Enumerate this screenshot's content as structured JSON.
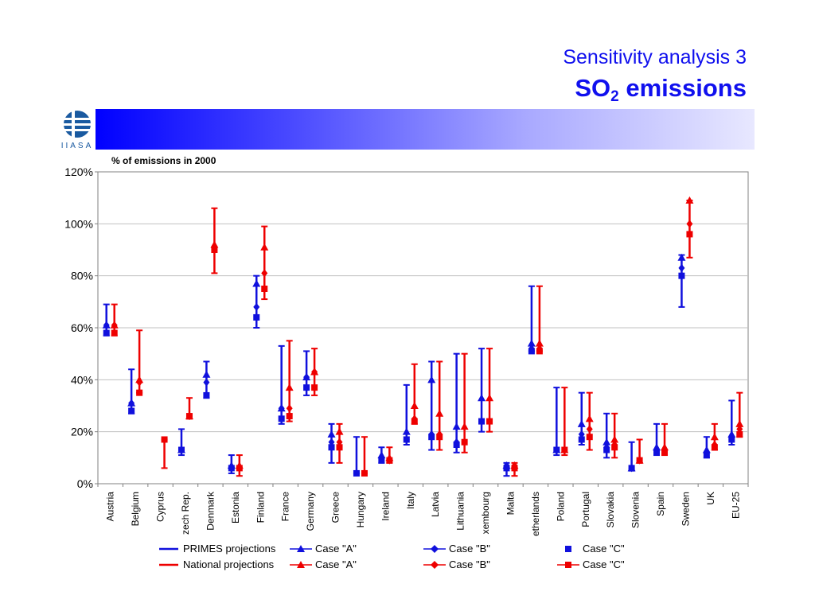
{
  "header": {
    "title": "Sensitivity analysis 3",
    "subtitle_prefix": "SO",
    "subtitle_sub": "2",
    "subtitle_suffix": " emissions",
    "logo_text": "IIASA"
  },
  "colors": {
    "primes": "#1010dd",
    "national": "#ee0000",
    "title": "#1010ee"
  },
  "chart_data": {
    "type": "scatter",
    "unit_label": "% of emissions in 2000",
    "ylim": [
      0,
      120
    ],
    "yticks": [
      "0%",
      "20%",
      "40%",
      "60%",
      "80%",
      "100%",
      "120%"
    ],
    "grid": true,
    "categories": [
      "Austria",
      "Belgium",
      "Cyprus",
      "Czech Rep.",
      "Denmark",
      "Estonia",
      "Finland",
      "France",
      "Germany",
      "Greece",
      "Hungary",
      "Ireland",
      "Italy",
      "Latvia",
      "Lithuania",
      "Luxembourg",
      "Malta",
      "Netherlands",
      "Poland",
      "Portugal",
      "Slovakia",
      "Slovenia",
      "Spain",
      "Sweden",
      "UK",
      "EU-25"
    ],
    "category_labels": [
      "Austria",
      "Belgium",
      "Cyprus",
      "zech Rep.",
      "Denmark",
      "Estonia",
      "Finland",
      "France",
      "Germany",
      "Greece",
      "Hungary",
      "Ireland",
      "Italy",
      "Latvia",
      "Lithuania",
      "xembourg",
      "Malta",
      "etherlands",
      "Poland",
      "Portugal",
      "Slovakia",
      "Slovenia",
      "Spain",
      "Sweden",
      "UK",
      "EU-25"
    ],
    "series": [
      {
        "name": "PRIMES projections",
        "color": "#1010dd",
        "range_low": [
          57,
          27,
          null,
          11,
          33,
          4,
          60,
          23,
          34,
          8,
          4,
          8,
          15,
          13,
          12,
          20,
          3,
          51,
          11,
          15,
          10,
          5,
          11,
          68,
          10,
          15
        ],
        "range_high": [
          69,
          44,
          null,
          21,
          47,
          11,
          80,
          53,
          51,
          23,
          18,
          14,
          38,
          47,
          50,
          52,
          8,
          76,
          37,
          35,
          27,
          16,
          23,
          88,
          18,
          32
        ],
        "case_a": [
          61,
          31,
          null,
          13,
          42,
          7,
          77,
          29,
          41,
          19,
          null,
          11,
          20,
          40,
          22,
          33,
          7,
          54,
          13,
          23,
          16,
          6,
          14,
          87,
          13,
          19
        ],
        "case_b": [
          61,
          31,
          null,
          13,
          39,
          6,
          68,
          29,
          41,
          16,
          null,
          10,
          17,
          19,
          16,
          24,
          7,
          52,
          13,
          19,
          14,
          6,
          13,
          83,
          12,
          18
        ],
        "case_c": [
          58,
          28,
          null,
          13,
          34,
          6,
          64,
          25,
          37,
          14,
          4,
          9,
          17,
          18,
          15,
          24,
          6,
          51,
          13,
          17,
          13,
          6,
          12,
          80,
          11,
          17
        ]
      },
      {
        "name": "National projections",
        "color": "#ee0000",
        "range_low": [
          57,
          35,
          6,
          25,
          81,
          3,
          71,
          24,
          34,
          8,
          4,
          8,
          23,
          13,
          12,
          20,
          3,
          51,
          11,
          13,
          10,
          8,
          11,
          87,
          13,
          18
        ],
        "range_high": [
          69,
          59,
          17,
          33,
          106,
          11,
          99,
          55,
          52,
          23,
          18,
          14,
          46,
          47,
          50,
          52,
          8,
          76,
          37,
          35,
          27,
          17,
          23,
          109,
          23,
          35
        ],
        "case_a": [
          61,
          40,
          null,
          26,
          92,
          7,
          91,
          37,
          43,
          20,
          null,
          10,
          30,
          27,
          22,
          33,
          7,
          54,
          13,
          25,
          17,
          9,
          14,
          109,
          18,
          23
        ],
        "case_b": [
          61,
          39,
          null,
          26,
          90,
          6,
          81,
          29,
          43,
          16,
          null,
          9,
          25,
          19,
          16,
          24,
          7,
          52,
          13,
          21,
          15,
          9,
          13,
          100,
          15,
          21
        ],
        "case_c": [
          58,
          35,
          17,
          26,
          90,
          6,
          75,
          26,
          37,
          14,
          4,
          9,
          24,
          18,
          16,
          24,
          6,
          51,
          13,
          18,
          14,
          9,
          12,
          96,
          14,
          19
        ]
      }
    ],
    "legend": {
      "row1": {
        "line_label": "PRIMES projections",
        "case_a": "Case \"A\"",
        "case_b": "Case \"B\"",
        "case_c": "Case \"C\""
      },
      "row2": {
        "line_label": "National projections",
        "case_a": "Case \"A\"",
        "case_b": "Case \"B\"",
        "case_c": "Case \"C\""
      },
      "placement": "bottom"
    }
  }
}
